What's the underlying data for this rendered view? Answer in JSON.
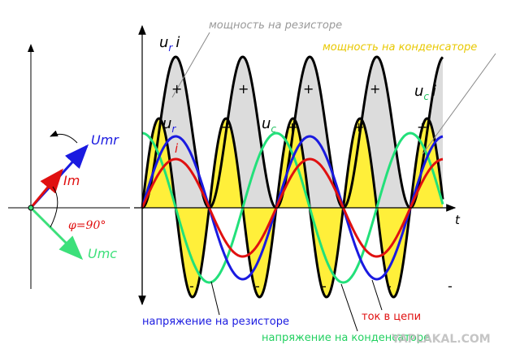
{
  "annotations": {
    "power_resistor": "мощность на резисторе",
    "power_capacitor": "мощность на конденсаторе"
  },
  "symbols": {
    "u": "u",
    "r": "r",
    "c": "c",
    "i": "i",
    "t": "t"
  },
  "vector": {
    "umr": "Umr",
    "im": "Im",
    "umc": "Umc",
    "phi": "φ=90°"
  },
  "legend": {
    "voltage_resistor": "напряжение на резисторе",
    "current": "ток в цепи",
    "voltage_capacitor": "напряжение на конденсаторе"
  },
  "signs": {
    "plus": "+",
    "minus": "-"
  },
  "watermark": "YAPLAKAL.COM"
}
